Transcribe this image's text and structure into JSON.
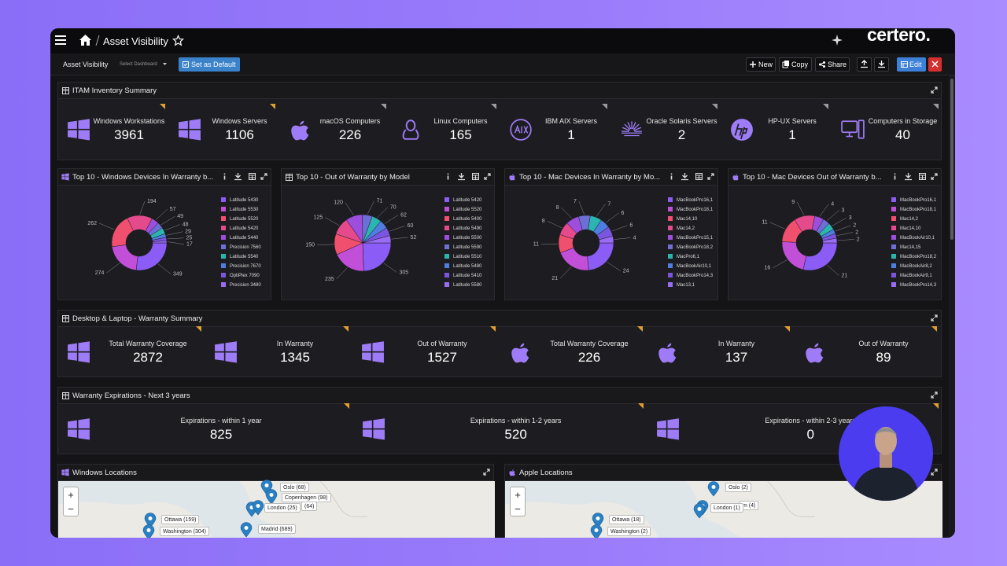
{
  "header": {
    "title": "Asset Visibility",
    "brand": "certero."
  },
  "toolbar": {
    "dashboard": "Asset Visibility",
    "select": "Select Dashboard",
    "set_default": "Set as Default",
    "new": "New",
    "copy": "Copy",
    "share": "Share",
    "edit": "Edit"
  },
  "inventory": {
    "title": "ITAM Inventory Summary",
    "items": [
      {
        "label": "Windows Workstations",
        "value": 3961
      },
      {
        "label": "Windows Servers",
        "value": 1106
      },
      {
        "label": "macOS Computers",
        "value": 226
      },
      {
        "label": "Linux Computers",
        "value": 165
      },
      {
        "label": "IBM AIX Servers",
        "value": 1
      },
      {
        "label": "Oracle Solaris Servers",
        "value": 2
      },
      {
        "label": "HP-UX Servers",
        "value": 1
      },
      {
        "label": "Computers in Storage",
        "value": 40
      }
    ]
  },
  "chart_data": [
    {
      "type": "pie",
      "donut": true,
      "title": "Top 10 - Windows Devices In Warranty b...",
      "categories": [
        "Latitude 5430",
        "Latitude 5530",
        "Latitude 5520",
        "Latitude 5420",
        "Latitude 5440",
        "Precision 7560",
        "Latitude 5540",
        "Precision 7670",
        "OptiPlex 7090",
        "Precision 3480"
      ],
      "values": [
        349,
        274,
        262,
        194,
        57,
        49,
        48,
        29,
        25,
        17
      ],
      "colors": [
        "#8b5cf6",
        "#c14fd8",
        "#f0506e",
        "#e54a8c",
        "#9d4edd",
        "#6c6fd6",
        "#2bb5b0",
        "#4f7de0",
        "#7a55e0",
        "#9a6cf5"
      ]
    },
    {
      "type": "pie",
      "donut": false,
      "title": "Top 10 - Out of Warranty by Model",
      "categories": [
        "Latitude 5420",
        "Latitude 5520",
        "Latitude 5400",
        "Latitude 5490",
        "Latitude 5500",
        "Latitude 5590",
        "Latitude 5510",
        "Latitude 5480",
        "Latitude 5410",
        "Latitude 5580"
      ],
      "values": [
        305,
        235,
        150,
        125,
        120,
        71,
        70,
        62,
        60,
        52
      ],
      "colors": [
        "#8b5cf6",
        "#c14fd8",
        "#f0506e",
        "#e54a8c",
        "#9d4edd",
        "#6c6fd6",
        "#2bb5b0",
        "#4f7de0",
        "#7a55e0",
        "#9a6cf5"
      ]
    },
    {
      "type": "pie",
      "donut": true,
      "title": "Top 10 - Mac Devices In Warranty by Mo...",
      "categories": [
        "MacBookPro16,1",
        "MacBookPro18,1",
        "Mac14,10",
        "Mac14,2",
        "MacBookPro15,1",
        "MacBookPro18,2",
        "MacPro6,1",
        "MacBookAir10,1",
        "MacBookPro14,3",
        "Mac13,1"
      ],
      "values": [
        24,
        21,
        11,
        8,
        8,
        7,
        7,
        6,
        6,
        4
      ],
      "colors": [
        "#8b5cf6",
        "#c14fd8",
        "#f0506e",
        "#e54a8c",
        "#9d4edd",
        "#6c6fd6",
        "#2bb5b0",
        "#4f7de0",
        "#7a55e0",
        "#9a6cf5"
      ]
    },
    {
      "type": "pie",
      "donut": true,
      "title": "Top 10 - Mac Devices Out of Warranty b...",
      "categories": [
        "MacBookPro16,1",
        "MacBookPro18,1",
        "Mac14,2",
        "Mac14,10",
        "MacBookAir10,1",
        "Mac14,15",
        "MacBookPro18,2",
        "MacBookAir8,2",
        "MacBookAir9,1",
        "MacBookPro14,3"
      ],
      "values": [
        21,
        16,
        11,
        9,
        4,
        3,
        3,
        2,
        2,
        2
      ],
      "colors": [
        "#8b5cf6",
        "#c14fd8",
        "#f0506e",
        "#e54a8c",
        "#9d4edd",
        "#6c6fd6",
        "#2bb5b0",
        "#4f7de0",
        "#7a55e0",
        "#9a6cf5"
      ]
    }
  ],
  "warranty": {
    "title": "Desktop & Laptop - Warranty Summary",
    "items": [
      {
        "label": "Total Warranty Coverage",
        "value": 2872
      },
      {
        "label": "In Warranty",
        "value": 1345
      },
      {
        "label": "Out of Warranty",
        "value": 1527
      },
      {
        "label": "Total Warranty Coverage",
        "value": 226
      },
      {
        "label": "In Warranty",
        "value": 137
      },
      {
        "label": "Out of Warranty",
        "value": 89
      }
    ]
  },
  "expirations": {
    "title": "Warranty Expirations - Next 3 years",
    "items": [
      {
        "label": "Expirations - within 1 year",
        "value": 825
      },
      {
        "label": "Expirations - within 1-2 years",
        "value": 520
      },
      {
        "label": "Expirations - within 2-3 years",
        "value": 0
      }
    ]
  },
  "maps": [
    {
      "title": "Windows Locations",
      "zoom": [
        "+",
        "−"
      ],
      "markers": [
        "Oslo (68)",
        "Copenhagen (98)",
        "London (25)",
        "(64)",
        "Ottawa (159)",
        "Washington (304)",
        "Madrid (689)"
      ]
    },
    {
      "title": "Apple Locations",
      "zoom": [
        "+",
        "−"
      ],
      "markers": [
        "Oslo (2)",
        "m (4)",
        "London (1)",
        "Ottawa (18)",
        "Washington (2)"
      ]
    }
  ]
}
